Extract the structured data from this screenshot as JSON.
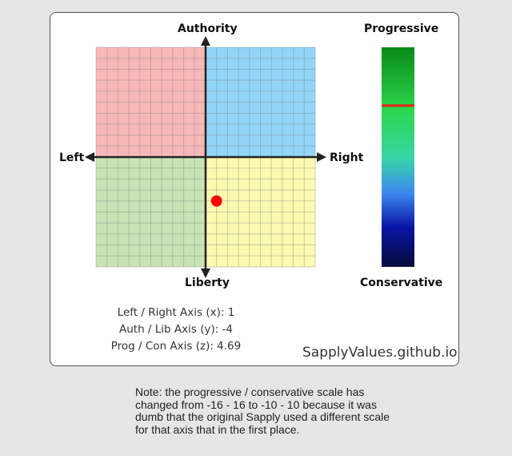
{
  "chart_data": {
    "type": "scatter",
    "quadrant_labels": {
      "top": "Authority",
      "bottom": "Liberty",
      "left": "Left",
      "right": "Right"
    },
    "xlim": [
      -10,
      10
    ],
    "ylim": [
      -10,
      10
    ],
    "grid": true,
    "quadrant_colors": {
      "auth_left": "#f9b8b8",
      "auth_right": "#92d5f8",
      "lib_left": "#c8e3b5",
      "lib_right": "#fafab0"
    },
    "point": {
      "x": 1,
      "y": -4,
      "color": "#ff0000"
    },
    "side_scale": {
      "top_label": "Progressive",
      "bottom_label": "Conservative",
      "range": [
        -10,
        10
      ],
      "value": 4.69,
      "marker_color": "#e8231a"
    }
  },
  "readouts": {
    "x": "Left / Right Axis (x): 1",
    "y": "Auth / Lib Axis (y): -4",
    "z": "Prog / Con Axis (z): 4.69"
  },
  "brand": "SapplyValues.github.io",
  "note": "Note: the progressive / conservative scale has changed from -16 - 16 to -10 - 10 because it was dumb that the original Sapply used a different scale for that axis that in the first place."
}
